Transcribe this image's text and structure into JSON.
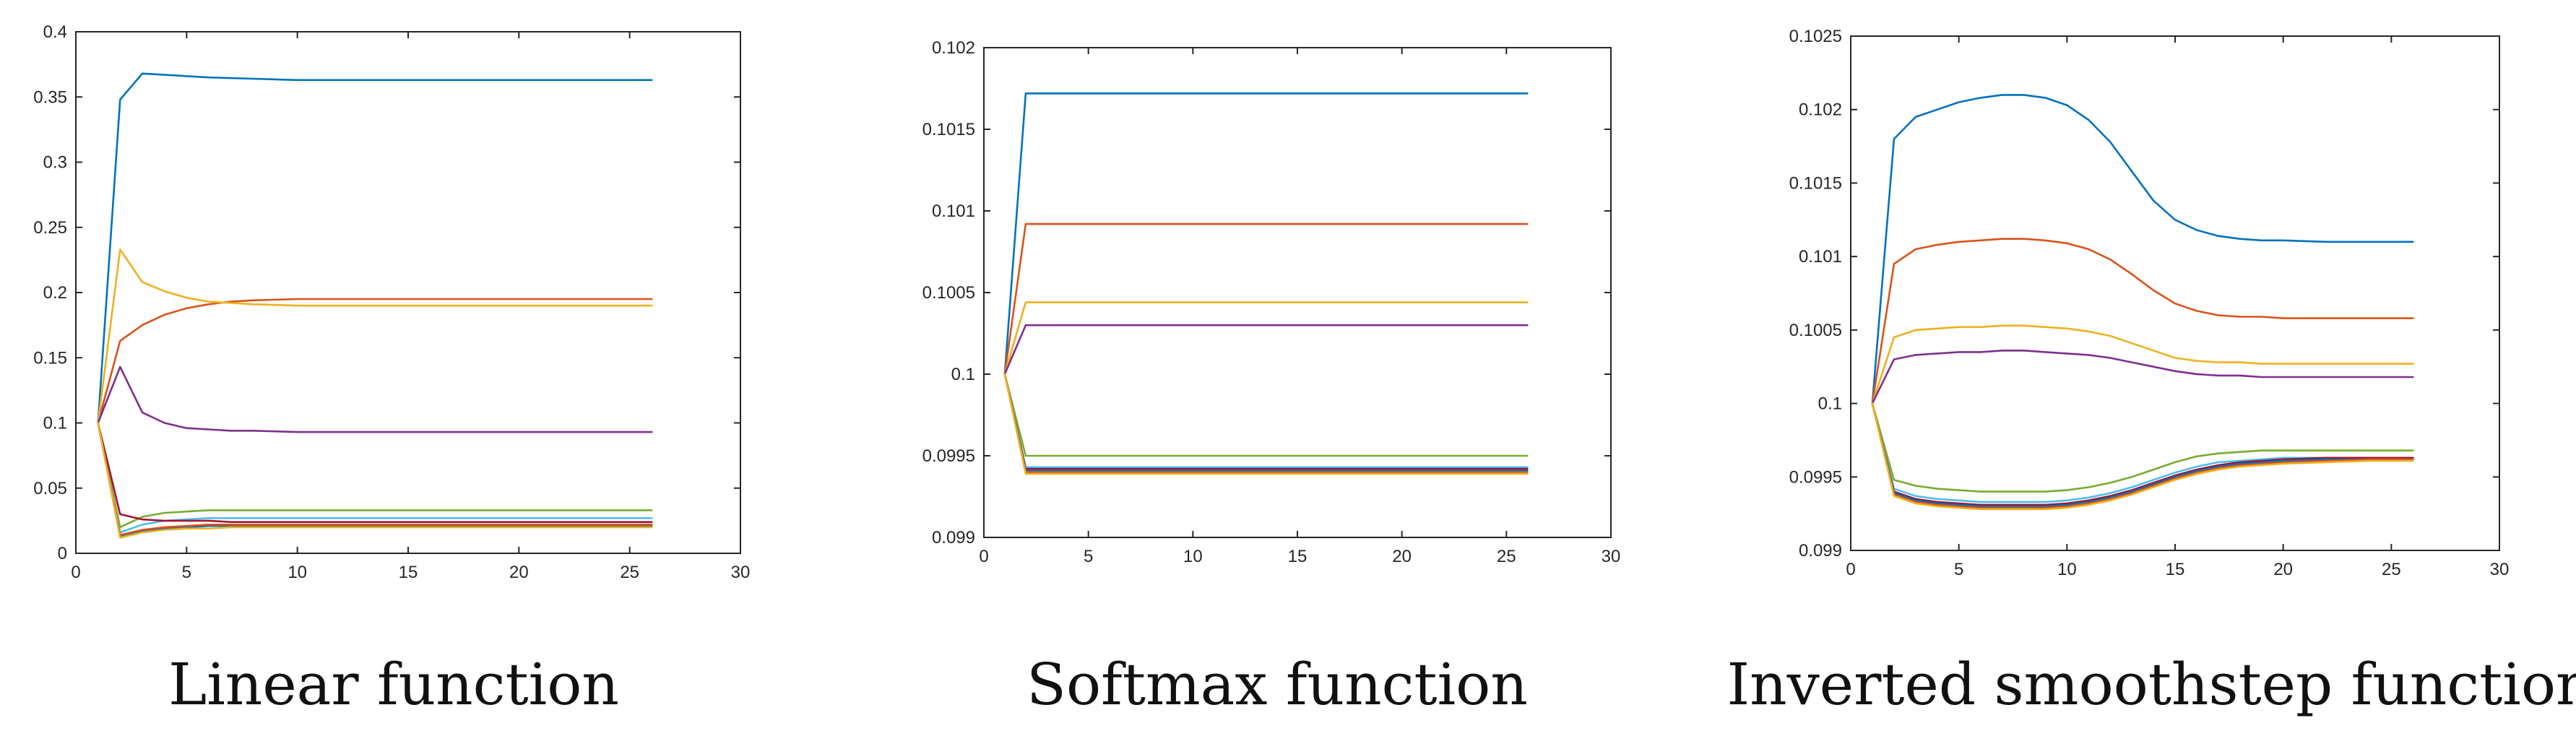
{
  "figure": {
    "series_colors": [
      "#0072BD",
      "#D95319",
      "#EDB120",
      "#7E2F8E",
      "#77AC30",
      "#4DBEEE",
      "#A2142F"
    ]
  },
  "chart_data": [
    {
      "type": "line",
      "caption": "Linear function",
      "xlim": [
        0,
        30
      ],
      "ylim": [
        0,
        0.4
      ],
      "xticks": [
        0,
        5,
        10,
        15,
        20,
        25,
        30
      ],
      "xtick_labels": [
        "0",
        "5",
        "10",
        "15",
        "20",
        "25",
        "30"
      ],
      "yticks": [
        0,
        0.05,
        0.1,
        0.15,
        0.2,
        0.25,
        0.3,
        0.35,
        0.4
      ],
      "ytick_labels": [
        "0",
        "0.05",
        "0.1",
        "0.15",
        "0.2",
        "0.25",
        "0.3",
        "0.35",
        "0.4"
      ],
      "grid": false,
      "series": [
        {
          "color": "#0072BD",
          "x": [
            1,
            2,
            3,
            4,
            5,
            6,
            8,
            10,
            12,
            15,
            20,
            26
          ],
          "values": [
            0.1,
            0.348,
            0.368,
            0.367,
            0.366,
            0.365,
            0.364,
            0.363,
            0.363,
            0.363,
            0.363,
            0.363
          ]
        },
        {
          "color": "#D95319",
          "x": [
            1,
            2,
            3,
            4,
            5,
            6,
            7,
            8,
            10,
            12,
            15,
            20,
            26
          ],
          "values": [
            0.1,
            0.163,
            0.175,
            0.183,
            0.188,
            0.191,
            0.193,
            0.194,
            0.195,
            0.195,
            0.195,
            0.195,
            0.195
          ]
        },
        {
          "color": "#EDB120",
          "x": [
            1,
            2,
            3,
            4,
            5,
            6,
            7,
            8,
            10,
            12,
            15,
            20,
            26
          ],
          "values": [
            0.1,
            0.233,
            0.208,
            0.201,
            0.196,
            0.193,
            0.192,
            0.191,
            0.19,
            0.19,
            0.19,
            0.19,
            0.19
          ]
        },
        {
          "color": "#7E2F8E",
          "x": [
            1,
            2,
            3,
            4,
            5,
            6,
            7,
            8,
            10,
            15,
            20,
            26
          ],
          "values": [
            0.1,
            0.143,
            0.108,
            0.1,
            0.096,
            0.095,
            0.094,
            0.094,
            0.093,
            0.093,
            0.093,
            0.093
          ]
        },
        {
          "color": "#77AC30",
          "x": [
            1,
            2,
            3,
            4,
            5,
            6,
            7,
            8,
            10,
            15,
            20,
            26
          ],
          "values": [
            0.1,
            0.02,
            0.028,
            0.031,
            0.032,
            0.033,
            0.033,
            0.033,
            0.033,
            0.033,
            0.033,
            0.033
          ]
        },
        {
          "color": "#4DBEEE",
          "x": [
            1,
            2,
            3,
            4,
            5,
            6,
            7,
            8,
            10,
            15,
            20,
            26
          ],
          "values": [
            0.1,
            0.016,
            0.022,
            0.025,
            0.026,
            0.027,
            0.027,
            0.027,
            0.027,
            0.027,
            0.027,
            0.027
          ]
        },
        {
          "color": "#A2142F",
          "x": [
            1,
            2,
            3,
            4,
            5,
            6,
            7,
            8,
            10,
            15,
            20,
            26
          ],
          "values": [
            0.1,
            0.03,
            0.026,
            0.025,
            0.025,
            0.025,
            0.024,
            0.024,
            0.024,
            0.024,
            0.024,
            0.024
          ]
        },
        {
          "color": "#0072BD",
          "x": [
            1,
            2,
            3,
            4,
            5,
            6,
            7,
            8,
            10,
            15,
            20,
            26
          ],
          "values": [
            0.1,
            0.013,
            0.017,
            0.019,
            0.02,
            0.021,
            0.021,
            0.021,
            0.021,
            0.021,
            0.021,
            0.021
          ]
        },
        {
          "color": "#D95319",
          "x": [
            1,
            2,
            3,
            4,
            5,
            6,
            7,
            8,
            10,
            15,
            20,
            26
          ],
          "values": [
            0.1,
            0.014,
            0.018,
            0.02,
            0.021,
            0.022,
            0.022,
            0.022,
            0.022,
            0.022,
            0.022,
            0.022
          ]
        },
        {
          "color": "#EDB120",
          "x": [
            1,
            2,
            3,
            4,
            5,
            6,
            7,
            8,
            10,
            15,
            20,
            26
          ],
          "values": [
            0.1,
            0.012,
            0.016,
            0.018,
            0.019,
            0.019,
            0.02,
            0.02,
            0.02,
            0.02,
            0.02,
            0.02
          ]
        }
      ]
    },
    {
      "type": "line",
      "caption": "Softmax function",
      "xlim": [
        0,
        30
      ],
      "ylim": [
        0.099,
        0.102
      ],
      "xticks": [
        0,
        5,
        10,
        15,
        20,
        25,
        30
      ],
      "xtick_labels": [
        "0",
        "5",
        "10",
        "15",
        "20",
        "25",
        "30"
      ],
      "yticks": [
        0.099,
        0.0995,
        0.1,
        0.1005,
        0.101,
        0.1015,
        0.102
      ],
      "ytick_labels": [
        "0.099",
        "0.0995",
        "0.1",
        "0.1005",
        "0.101",
        "0.1015",
        "0.102"
      ],
      "grid": false,
      "series": [
        {
          "color": "#0072BD",
          "x": [
            1,
            2,
            26
          ],
          "values": [
            0.1,
            0.10172,
            0.10172
          ]
        },
        {
          "color": "#D95319",
          "x": [
            1,
            2,
            26
          ],
          "values": [
            0.1,
            0.10092,
            0.10092
          ]
        },
        {
          "color": "#EDB120",
          "x": [
            1,
            2,
            26
          ],
          "values": [
            0.1,
            0.10044,
            0.10044
          ]
        },
        {
          "color": "#7E2F8E",
          "x": [
            1,
            2,
            26
          ],
          "values": [
            0.1,
            0.1003,
            0.1003
          ]
        },
        {
          "color": "#77AC30",
          "x": [
            1,
            2,
            26
          ],
          "values": [
            0.1,
            0.0995,
            0.0995
          ]
        },
        {
          "color": "#4DBEEE",
          "x": [
            1,
            2,
            26
          ],
          "values": [
            0.1,
            0.09943,
            0.09943
          ]
        },
        {
          "color": "#A2142F",
          "x": [
            1,
            2,
            26
          ],
          "values": [
            0.1,
            0.09942,
            0.09942
          ]
        },
        {
          "color": "#0072BD",
          "x": [
            1,
            2,
            26
          ],
          "values": [
            0.1,
            0.09941,
            0.09941
          ]
        },
        {
          "color": "#D95319",
          "x": [
            1,
            2,
            26
          ],
          "values": [
            0.1,
            0.0994,
            0.0994
          ]
        },
        {
          "color": "#EDB120",
          "x": [
            1,
            2,
            26
          ],
          "values": [
            0.1,
            0.09939,
            0.09939
          ]
        }
      ]
    },
    {
      "type": "line",
      "caption": "Inverted smoothstep function",
      "xlim": [
        0,
        30
      ],
      "ylim": [
        0.099,
        0.1025
      ],
      "xticks": [
        0,
        5,
        10,
        15,
        20,
        25,
        30
      ],
      "xtick_labels": [
        "0",
        "5",
        "10",
        "15",
        "20",
        "25",
        "30"
      ],
      "yticks": [
        0.099,
        0.0995,
        0.1,
        0.1005,
        0.101,
        0.1015,
        0.102,
        0.1025
      ],
      "ytick_labels": [
        "0.099",
        "0.0995",
        "0.1",
        "0.1005",
        "0.101",
        "0.1015",
        "0.102",
        "0.1025"
      ],
      "grid": false,
      "series": [
        {
          "color": "#0072BD",
          "x": [
            1,
            2,
            3,
            4,
            5,
            6,
            7,
            8,
            9,
            10,
            11,
            12,
            13,
            14,
            15,
            16,
            17,
            18,
            19,
            20,
            22,
            24,
            26
          ],
          "values": [
            0.1,
            0.1018,
            0.10195,
            0.102,
            0.10205,
            0.10208,
            0.1021,
            0.1021,
            0.10208,
            0.10203,
            0.10193,
            0.10178,
            0.10158,
            0.10138,
            0.10125,
            0.10118,
            0.10114,
            0.10112,
            0.10111,
            0.10111,
            0.1011,
            0.1011,
            0.1011
          ]
        },
        {
          "color": "#D95319",
          "x": [
            1,
            2,
            3,
            4,
            5,
            6,
            7,
            8,
            9,
            10,
            11,
            12,
            13,
            14,
            15,
            16,
            17,
            18,
            19,
            20,
            22,
            24,
            26
          ],
          "values": [
            0.1,
            0.10095,
            0.10105,
            0.10108,
            0.1011,
            0.10111,
            0.10112,
            0.10112,
            0.10111,
            0.10109,
            0.10105,
            0.10098,
            0.10088,
            0.10077,
            0.10068,
            0.10063,
            0.1006,
            0.10059,
            0.10059,
            0.10058,
            0.10058,
            0.10058,
            0.10058
          ]
        },
        {
          "color": "#EDB120",
          "x": [
            1,
            2,
            3,
            4,
            5,
            6,
            7,
            8,
            9,
            10,
            11,
            12,
            13,
            14,
            15,
            16,
            17,
            18,
            19,
            20,
            22,
            24,
            26
          ],
          "values": [
            0.1,
            0.10045,
            0.1005,
            0.10051,
            0.10052,
            0.10052,
            0.10053,
            0.10053,
            0.10052,
            0.10051,
            0.10049,
            0.10046,
            0.10041,
            0.10036,
            0.10031,
            0.10029,
            0.10028,
            0.10028,
            0.10027,
            0.10027,
            0.10027,
            0.10027,
            0.10027
          ]
        },
        {
          "color": "#7E2F8E",
          "x": [
            1,
            2,
            3,
            4,
            5,
            6,
            7,
            8,
            9,
            10,
            11,
            12,
            13,
            14,
            15,
            16,
            17,
            18,
            19,
            20,
            22,
            24,
            26
          ],
          "values": [
            0.1,
            0.1003,
            0.10033,
            0.10034,
            0.10035,
            0.10035,
            0.10036,
            0.10036,
            0.10035,
            0.10034,
            0.10033,
            0.10031,
            0.10028,
            0.10025,
            0.10022,
            0.1002,
            0.10019,
            0.10019,
            0.10018,
            0.10018,
            0.10018,
            0.10018,
            0.10018
          ]
        },
        {
          "color": "#77AC30",
          "x": [
            1,
            2,
            3,
            4,
            5,
            6,
            7,
            8,
            9,
            10,
            11,
            12,
            13,
            14,
            15,
            16,
            17,
            18,
            19,
            20,
            22,
            24,
            26
          ],
          "values": [
            0.1,
            0.09948,
            0.09944,
            0.09942,
            0.09941,
            0.0994,
            0.0994,
            0.0994,
            0.0994,
            0.09941,
            0.09943,
            0.09946,
            0.0995,
            0.09955,
            0.0996,
            0.09964,
            0.09966,
            0.09967,
            0.09968,
            0.09968,
            0.09968,
            0.09968,
            0.09968
          ]
        },
        {
          "color": "#4DBEEE",
          "x": [
            1,
            2,
            3,
            4,
            5,
            6,
            7,
            8,
            9,
            10,
            11,
            12,
            13,
            14,
            15,
            16,
            17,
            18,
            19,
            20,
            22,
            24,
            26
          ],
          "values": [
            0.1,
            0.09942,
            0.09937,
            0.09935,
            0.09934,
            0.09933,
            0.09933,
            0.09933,
            0.09933,
            0.09934,
            0.09936,
            0.09939,
            0.09943,
            0.09948,
            0.09953,
            0.09957,
            0.0996,
            0.09961,
            0.09962,
            0.09963,
            0.09963,
            0.09963,
            0.09963
          ]
        },
        {
          "color": "#A2142F",
          "x": [
            1,
            2,
            3,
            4,
            5,
            6,
            7,
            8,
            9,
            10,
            11,
            12,
            13,
            14,
            15,
            16,
            17,
            18,
            19,
            20,
            22,
            24,
            26
          ],
          "values": [
            0.1,
            0.0994,
            0.09935,
            0.09933,
            0.09932,
            0.09931,
            0.09931,
            0.09931,
            0.09931,
            0.09932,
            0.09934,
            0.09937,
            0.09941,
            0.09946,
            0.09951,
            0.09955,
            0.09958,
            0.0996,
            0.09961,
            0.09962,
            0.09963,
            0.09963,
            0.09963
          ]
        },
        {
          "color": "#0072BD",
          "x": [
            1,
            2,
            3,
            4,
            5,
            6,
            7,
            8,
            9,
            10,
            11,
            12,
            13,
            14,
            15,
            16,
            17,
            18,
            19,
            20,
            22,
            24,
            26
          ],
          "values": [
            0.1,
            0.09939,
            0.09934,
            0.09932,
            0.09931,
            0.0993,
            0.0993,
            0.0993,
            0.0993,
            0.09931,
            0.09933,
            0.09936,
            0.0994,
            0.09945,
            0.0995,
            0.09954,
            0.09957,
            0.09959,
            0.0996,
            0.09961,
            0.09962,
            0.09962,
            0.09962
          ]
        },
        {
          "color": "#D95319",
          "x": [
            1,
            2,
            3,
            4,
            5,
            6,
            7,
            8,
            9,
            10,
            11,
            12,
            13,
            14,
            15,
            16,
            17,
            18,
            19,
            20,
            22,
            24,
            26
          ],
          "values": [
            0.1,
            0.09938,
            0.09933,
            0.09931,
            0.0993,
            0.09929,
            0.09929,
            0.09929,
            0.09929,
            0.0993,
            0.09932,
            0.09935,
            0.09939,
            0.09944,
            0.09949,
            0.09953,
            0.09956,
            0.09958,
            0.09959,
            0.0996,
            0.09961,
            0.09962,
            0.09962
          ]
        },
        {
          "color": "#EDB120",
          "x": [
            1,
            2,
            3,
            4,
            5,
            6,
            7,
            8,
            9,
            10,
            11,
            12,
            13,
            14,
            15,
            16,
            17,
            18,
            19,
            20,
            22,
            24,
            26
          ],
          "values": [
            0.1,
            0.09937,
            0.09932,
            0.0993,
            0.09929,
            0.09928,
            0.09928,
            0.09928,
            0.09928,
            0.09929,
            0.09931,
            0.09934,
            0.09938,
            0.09943,
            0.09948,
            0.09952,
            0.09955,
            0.09957,
            0.09958,
            0.09959,
            0.0996,
            0.09961,
            0.09961
          ]
        }
      ]
    }
  ]
}
